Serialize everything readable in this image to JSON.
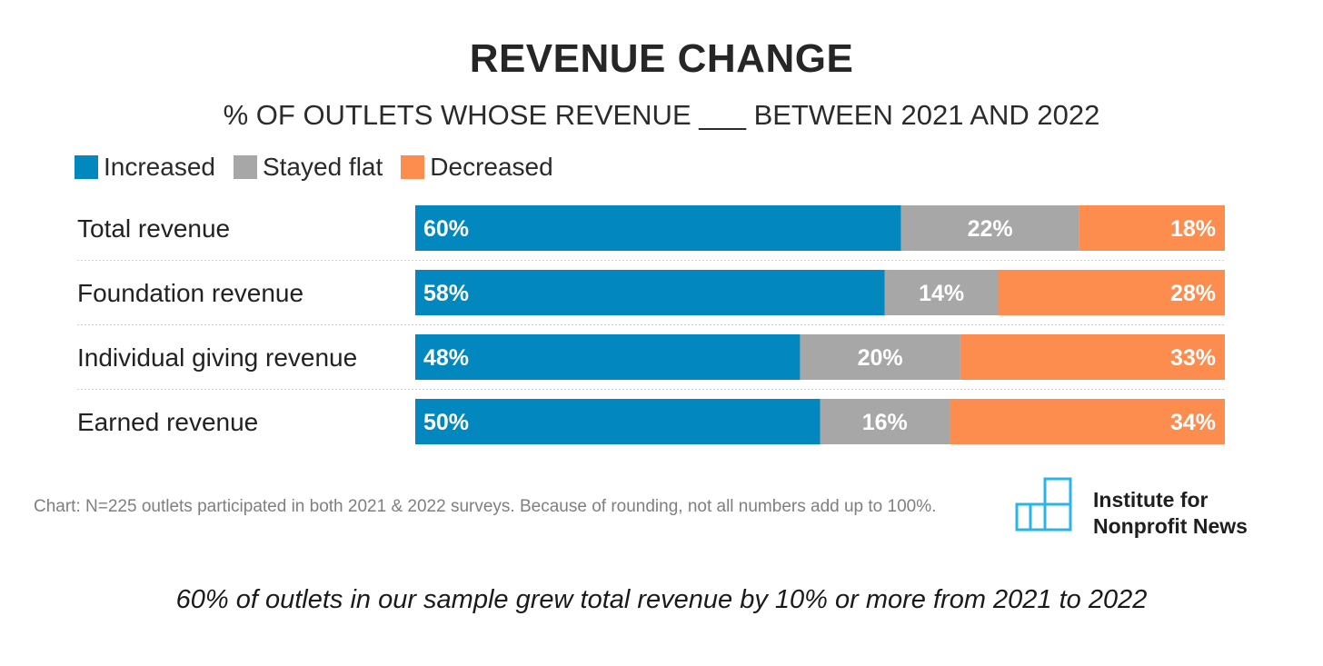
{
  "chart_data": {
    "type": "bar",
    "orientation": "horizontal",
    "stacked": true,
    "title": "REVENUE CHANGE",
    "subtitle": "% OF OUTLETS WHOSE REVENUE ___ BETWEEN 2021 AND 2022",
    "categories": [
      "Total revenue",
      "Foundation revenue",
      "Individual giving revenue",
      "Earned revenue"
    ],
    "series": [
      {
        "name": "Increased",
        "color": "#0288be",
        "values": [
          60,
          58,
          48,
          50
        ],
        "labels": [
          "60%",
          "58%",
          "48%",
          "50%"
        ],
        "label_align": "start"
      },
      {
        "name": "Stayed flat",
        "color": "#a7a7a7",
        "values": [
          22,
          14,
          20,
          16
        ],
        "labels": [
          "22%",
          "14%",
          "20%",
          "16%"
        ],
        "label_align": "middle"
      },
      {
        "name": "Decreased",
        "color": "#fd8c4f",
        "values": [
          18,
          28,
          33,
          34
        ],
        "labels": [
          "18%",
          "28%",
          "33%",
          "34%"
        ],
        "label_align": "end"
      }
    ],
    "legend_position": "top-left",
    "grid": false
  },
  "footnote": "Chart: N=225 outlets participated in both 2021 & 2022 surveys. Because of rounding, not all numbers add up to 100%.",
  "logo": {
    "line1": "Institute for",
    "line2": "Nonprofit News",
    "icon": "stacked-squares-logo-icon",
    "color": "#29b5e8"
  },
  "caption": "60% of outlets in our sample grew total revenue by 10% or more from 2021 to 2022"
}
